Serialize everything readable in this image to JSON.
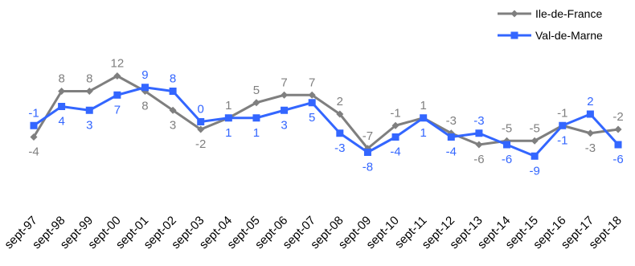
{
  "chart_data": {
    "type": "line",
    "categories": [
      "sept-97",
      "sept-98",
      "sept-99",
      "sept-00",
      "sept-01",
      "sept-02",
      "sept-03",
      "sept-04",
      "sept-05",
      "sept-06",
      "sept-07",
      "sept-08",
      "sept-09",
      "sept-10",
      "sept-11",
      "sept-12",
      "sept-13",
      "sept-14",
      "sept-15",
      "sept-16",
      "sept-17",
      "sept-18"
    ],
    "series": [
      {
        "name": "Ile-de-France",
        "color": "#7f7f7f",
        "marker": "diamond",
        "values": [
          -4,
          8,
          8,
          12,
          8,
          3,
          -2,
          1,
          5,
          7,
          7,
          2,
          -7,
          -1,
          1,
          -3,
          -6,
          -5,
          -5,
          -1,
          -3,
          -2
        ]
      },
      {
        "name": "Val-de-Marne",
        "color": "#3366ff",
        "marker": "square",
        "values": [
          -1,
          4,
          3,
          7,
          9,
          8,
          0,
          1,
          1,
          3,
          5,
          -3,
          -8,
          -4,
          1,
          -4,
          -3,
          -6,
          -9,
          -1,
          2,
          -6
        ]
      }
    ],
    "grid": false,
    "legend_position": "top-right"
  }
}
